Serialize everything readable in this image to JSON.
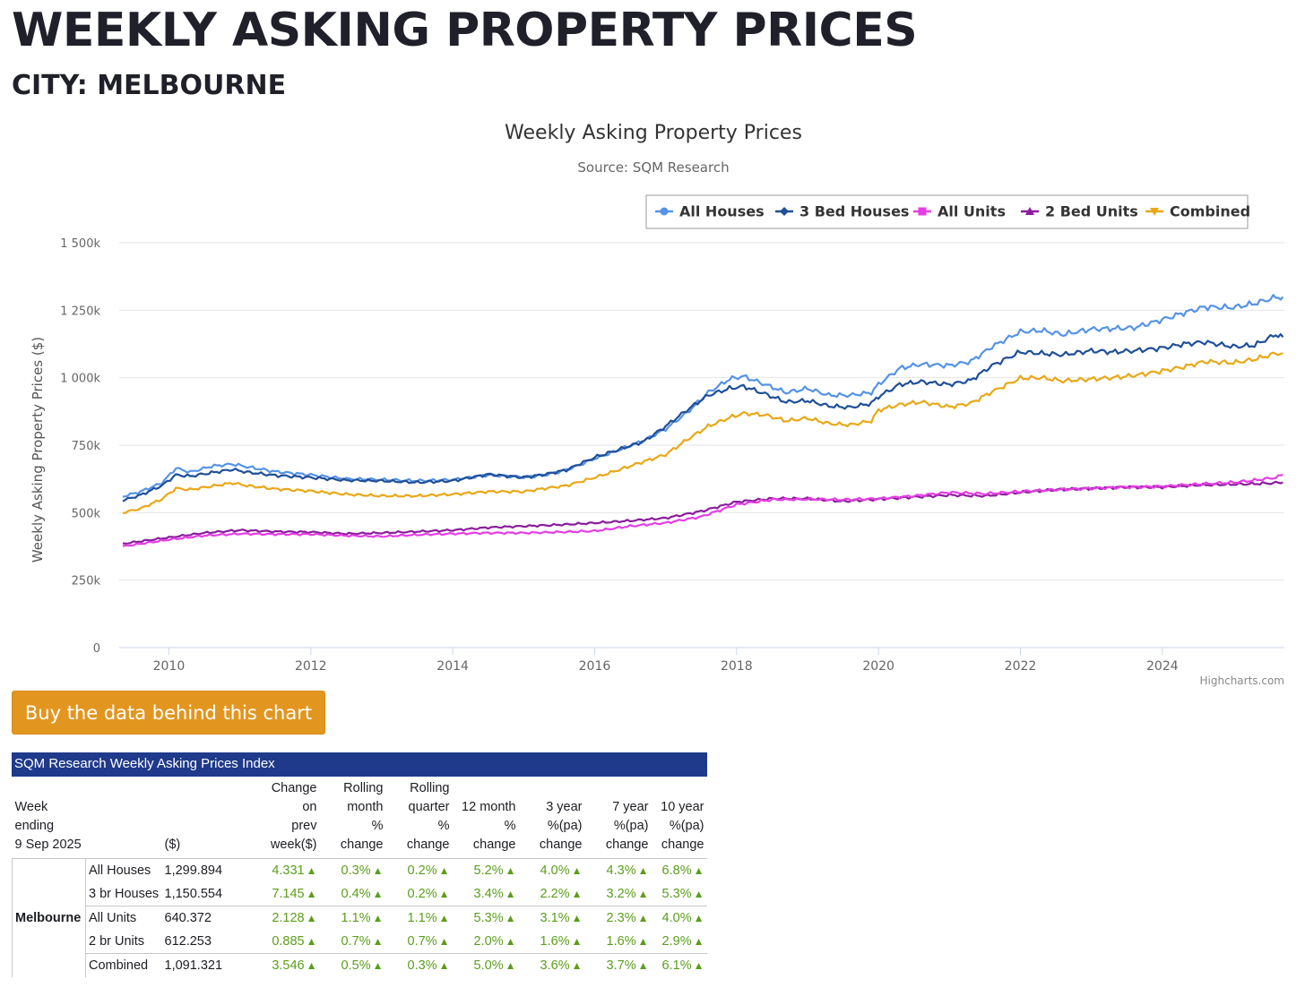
{
  "page": {
    "title": "WEEKLY ASKING PROPERTY PRICES",
    "subtitle": "CITY: MELBOURNE",
    "buy_button": "Buy the data behind this chart"
  },
  "chart_data": {
    "type": "line",
    "title": "Weekly Asking Property Prices",
    "subtitle": "Source: SQM Research",
    "ylabel": "Weekly Asking Property Prices ($)",
    "xlabel": "",
    "ylim": [
      0,
      1500000
    ],
    "yticks": [
      0,
      250000,
      500000,
      750000,
      1000000,
      1250000,
      1500000
    ],
    "ytick_labels": [
      "0",
      "250k",
      "500k",
      "750k",
      "1 000k",
      "1 250k",
      "1 500k"
    ],
    "xlim": [
      2009.3,
      2025.72
    ],
    "xticks": [
      2010,
      2012,
      2014,
      2016,
      2018,
      2020,
      2022,
      2024
    ],
    "xtick_labels": [
      "2010",
      "2012",
      "2014",
      "2016",
      "2018",
      "2020",
      "2022",
      "2024"
    ],
    "grid": true,
    "legend_position": "top-right",
    "credit": "Highcharts.com",
    "series": [
      {
        "name": "All Houses",
        "color": "#5593e6",
        "marker": "circle",
        "x": [
          2009.35,
          2009.6,
          2009.9,
          2010.1,
          2010.3,
          2010.6,
          2010.9,
          2011.1,
          2011.5,
          2012.0,
          2012.5,
          2013.0,
          2013.5,
          2014.0,
          2014.5,
          2015.0,
          2015.3,
          2015.6,
          2016.0,
          2016.3,
          2016.7,
          2017.0,
          2017.3,
          2017.6,
          2017.9,
          2018.1,
          2018.4,
          2018.7,
          2019.0,
          2019.3,
          2019.6,
          2019.9,
          2020.0,
          2020.3,
          2020.6,
          2021.0,
          2021.3,
          2021.6,
          2022.0,
          2022.3,
          2022.6,
          2023.0,
          2023.3,
          2023.6,
          2024.0,
          2024.3,
          2024.6,
          2025.0,
          2025.3,
          2025.6,
          2025.7
        ],
        "y": [
          560000,
          578000,
          610000,
          665000,
          650000,
          672000,
          680000,
          670000,
          652000,
          640000,
          625000,
          622000,
          618000,
          622000,
          640000,
          632000,
          640000,
          658000,
          700000,
          728000,
          768000,
          810000,
          870000,
          945000,
          995000,
          1005000,
          975000,
          945000,
          960000,
          935000,
          935000,
          945000,
          975000,
          1035000,
          1050000,
          1045000,
          1060000,
          1115000,
          1170000,
          1175000,
          1160000,
          1180000,
          1182000,
          1185000,
          1215000,
          1240000,
          1262000,
          1260000,
          1275000,
          1298000,
          1300000
        ]
      },
      {
        "name": "3 Bed Houses",
        "color": "#1f4f98",
        "marker": "diamond",
        "x": [
          2009.35,
          2009.6,
          2009.9,
          2010.1,
          2010.3,
          2010.6,
          2010.9,
          2011.1,
          2011.5,
          2012.0,
          2012.5,
          2013.0,
          2013.5,
          2014.0,
          2014.5,
          2015.0,
          2015.3,
          2015.6,
          2016.0,
          2016.3,
          2016.7,
          2017.0,
          2017.3,
          2017.6,
          2017.9,
          2018.1,
          2018.4,
          2018.7,
          2019.0,
          2019.3,
          2019.6,
          2019.9,
          2020.0,
          2020.3,
          2020.6,
          2021.0,
          2021.3,
          2021.6,
          2022.0,
          2022.3,
          2022.6,
          2023.0,
          2023.3,
          2023.6,
          2024.0,
          2024.3,
          2024.6,
          2025.0,
          2025.3,
          2025.6,
          2025.7
        ],
        "y": [
          545000,
          565000,
          600000,
          640000,
          635000,
          648000,
          660000,
          650000,
          638000,
          630000,
          620000,
          618000,
          612000,
          618000,
          642000,
          630000,
          642000,
          658000,
          705000,
          730000,
          765000,
          820000,
          880000,
          935000,
          960000,
          968000,
          940000,
          910000,
          915000,
          895000,
          890000,
          905000,
          930000,
          975000,
          985000,
          975000,
          990000,
          1045000,
          1095000,
          1090000,
          1085000,
          1100000,
          1095000,
          1100000,
          1110000,
          1125000,
          1132000,
          1115000,
          1120000,
          1160000,
          1150554
        ]
      },
      {
        "name": "All Units",
        "color": "#e43ee3",
        "marker": "square",
        "x": [
          2009.35,
          2010.0,
          2010.5,
          2011.0,
          2011.5,
          2012.0,
          2012.5,
          2013.0,
          2013.5,
          2014.0,
          2014.5,
          2015.0,
          2015.5,
          2016.0,
          2016.5,
          2017.0,
          2017.5,
          2018.0,
          2018.5,
          2019.0,
          2019.5,
          2020.0,
          2020.5,
          2021.0,
          2021.5,
          2022.0,
          2022.5,
          2023.0,
          2023.5,
          2024.0,
          2024.5,
          2025.0,
          2025.3,
          2025.6,
          2025.7
        ],
        "y": [
          375000,
          400000,
          415000,
          422000,
          420000,
          420000,
          415000,
          412000,
          418000,
          422000,
          425000,
          425000,
          428000,
          432000,
          450000,
          462000,
          485000,
          530000,
          548000,
          550000,
          548000,
          552000,
          562000,
          575000,
          570000,
          578000,
          585000,
          590000,
          595000,
          597000,
          605000,
          612000,
          620000,
          630000,
          640372
        ]
      },
      {
        "name": "2 Bed Units",
        "color": "#8b1d9c",
        "marker": "triangle",
        "x": [
          2009.35,
          2010.0,
          2010.5,
          2011.0,
          2011.5,
          2012.0,
          2012.5,
          2013.0,
          2013.5,
          2014.0,
          2014.5,
          2015.0,
          2015.5,
          2016.0,
          2016.5,
          2017.0,
          2017.5,
          2018.0,
          2018.5,
          2019.0,
          2019.5,
          2020.0,
          2020.5,
          2021.0,
          2021.5,
          2022.0,
          2022.5,
          2023.0,
          2023.5,
          2024.0,
          2024.5,
          2025.0,
          2025.3,
          2025.6,
          2025.7
        ],
        "y": [
          385000,
          408000,
          425000,
          435000,
          430000,
          428000,
          422000,
          425000,
          430000,
          435000,
          445000,
          450000,
          455000,
          462000,
          470000,
          480000,
          505000,
          540000,
          552000,
          552000,
          542000,
          550000,
          558000,
          565000,
          562000,
          575000,
          585000,
          590000,
          595000,
          595000,
          602000,
          605000,
          607000,
          610000,
          612253
        ]
      },
      {
        "name": "Combined",
        "color": "#e8a817",
        "marker": "triangle-down",
        "x": [
          2009.35,
          2009.6,
          2009.9,
          2010.1,
          2010.3,
          2010.6,
          2010.9,
          2011.1,
          2011.5,
          2012.0,
          2012.5,
          2013.0,
          2013.5,
          2014.0,
          2014.5,
          2015.0,
          2015.3,
          2015.6,
          2016.0,
          2016.3,
          2016.7,
          2017.0,
          2017.3,
          2017.6,
          2017.9,
          2018.1,
          2018.4,
          2018.7,
          2019.0,
          2019.3,
          2019.6,
          2019.9,
          2020.0,
          2020.3,
          2020.6,
          2021.0,
          2021.3,
          2021.6,
          2022.0,
          2022.3,
          2022.6,
          2023.0,
          2023.3,
          2023.6,
          2024.0,
          2024.3,
          2024.6,
          2025.0,
          2025.3,
          2025.6,
          2025.7
        ],
        "y": [
          500000,
          515000,
          550000,
          590000,
          585000,
          598000,
          610000,
          600000,
          588000,
          580000,
          568000,
          562000,
          562000,
          568000,
          578000,
          578000,
          590000,
          600000,
          630000,
          655000,
          690000,
          715000,
          770000,
          820000,
          852000,
          868000,
          862000,
          840000,
          850000,
          830000,
          825000,
          840000,
          880000,
          900000,
          910000,
          892000,
          905000,
          948000,
          998000,
          1000000,
          988000,
          995000,
          1000000,
          1008000,
          1025000,
          1040000,
          1060000,
          1055000,
          1068000,
          1090000,
          1091321
        ]
      }
    ]
  },
  "table": {
    "caption": "SQM Research Weekly Asking Prices Index",
    "header": {
      "week_label": "Week ending",
      "week_date": "9 Sep 2025",
      "price_label": "($)",
      "change_prev": [
        "Change",
        "on",
        "prev",
        "week($)"
      ],
      "rolling_month": [
        "Rolling",
        "month",
        "%",
        "change"
      ],
      "rolling_quarter": [
        "Rolling",
        "quarter",
        "%",
        "change"
      ],
      "twelve_month": [
        "12 month",
        "%",
        "change"
      ],
      "three_year": [
        "3 year",
        "%(pa)",
        "change"
      ],
      "seven_year": [
        "7 year",
        "%(pa)",
        "change"
      ],
      "ten_year": [
        "10 year",
        "%(pa)",
        "change"
      ]
    },
    "city": "Melbourne",
    "rows": [
      {
        "type": "All Houses",
        "price": "1,299.894",
        "change": "4.331",
        "month": "0.3%",
        "quarter": "0.2%",
        "twelve": "5.2%",
        "three": "4.0%",
        "seven": "4.3%",
        "ten": "6.8%"
      },
      {
        "type": "3 br Houses",
        "price": "1,150.554",
        "change": "7.145",
        "month": "0.4%",
        "quarter": "0.2%",
        "twelve": "3.4%",
        "three": "2.2%",
        "seven": "3.2%",
        "ten": "5.3%"
      },
      {
        "type": "All Units",
        "price": "640.372",
        "change": "2.128",
        "month": "1.1%",
        "quarter": "1.1%",
        "twelve": "5.3%",
        "three": "3.1%",
        "seven": "2.3%",
        "ten": "4.0%"
      },
      {
        "type": "2 br Units",
        "price": "612.253",
        "change": "0.885",
        "month": "0.7%",
        "quarter": "0.7%",
        "twelve": "2.0%",
        "three": "1.6%",
        "seven": "1.6%",
        "ten": "2.9%"
      },
      {
        "type": "Combined",
        "price": "1,091.321",
        "change": "3.546",
        "month": "0.5%",
        "quarter": "0.3%",
        "twelve": "5.0%",
        "three": "3.6%",
        "seven": "3.7%",
        "ten": "6.1%"
      }
    ],
    "up_arrow": "▲",
    "up_color": "#5a9e1b"
  }
}
